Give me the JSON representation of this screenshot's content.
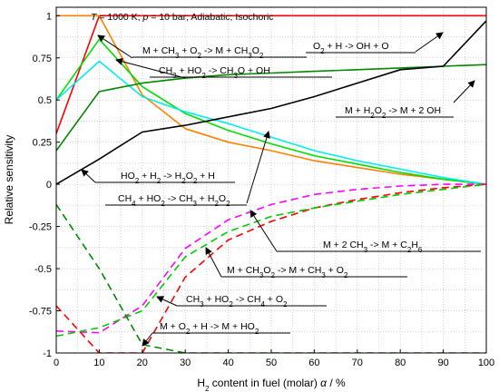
{
  "chart_data": {
    "type": "line",
    "title": "T = 1000 K; p = 10 bar; Adiabatic; Isochoric",
    "title_parts": [
      {
        "t": "T",
        "i": true
      },
      {
        "t": " = 1000 K; "
      },
      {
        "t": "p",
        "i": true
      },
      {
        "t": " = 10 bar; Adiabatic; Isochoric"
      }
    ],
    "xlabel": "H2 content in fuel (molar) α / %",
    "xlabel_parts": [
      {
        "t": "H"
      },
      {
        "t": "2",
        "sub": true
      },
      {
        "t": " content in fuel (molar) "
      },
      {
        "t": "α",
        "i": true
      },
      {
        "t": " / %"
      }
    ],
    "ylabel": "Relative sensitivity",
    "xlim": [
      0,
      100
    ],
    "ylim": [
      -1,
      1.05
    ],
    "xticks": [
      0,
      10,
      20,
      30,
      40,
      50,
      60,
      70,
      80,
      90,
      100
    ],
    "yticks": [
      -1,
      -0.75,
      -0.5,
      -0.25,
      0,
      0.25,
      0.5,
      0.75,
      1
    ],
    "ytick_labels": [
      "-1",
      "-0.75",
      "-0.5",
      "-0.25",
      "0",
      "0.25",
      "0.5",
      "0.75",
      "1"
    ],
    "grid": true,
    "x": [
      0,
      10,
      20,
      30,
      40,
      50,
      60,
      70,
      80,
      90,
      100
    ],
    "series": [
      {
        "name": "O2 + H -> OH + O",
        "color": "#ff0000",
        "dash": "solid",
        "points": [
          [
            0,
            0.3
          ],
          [
            10,
            1
          ],
          [
            20,
            1
          ],
          [
            30,
            1
          ],
          [
            40,
            1
          ],
          [
            50,
            1
          ],
          [
            60,
            1
          ],
          [
            70,
            1
          ],
          [
            80,
            1
          ],
          [
            90,
            1
          ],
          [
            100,
            1
          ]
        ]
      },
      {
        "name": "M + CH3 + O2 -> M + CH3O2",
        "color": "#ff8000",
        "dash": "solid",
        "points": [
          [
            0,
            1
          ],
          [
            10,
            1
          ],
          [
            20,
            0.53
          ],
          [
            30,
            0.33
          ],
          [
            40,
            0.25
          ],
          [
            50,
            0.2
          ],
          [
            60,
            0.14
          ],
          [
            70,
            0.1
          ],
          [
            80,
            0.06
          ],
          [
            90,
            0.03
          ],
          [
            100,
            0
          ]
        ]
      },
      {
        "name": "CH3 + HO2 -> CH3O + OH",
        "color": "#00dd00",
        "dash": "solid",
        "points": [
          [
            0,
            0.5
          ],
          [
            10,
            0.86
          ],
          [
            20,
            0.58
          ],
          [
            30,
            0.42
          ],
          [
            40,
            0.32
          ],
          [
            50,
            0.24
          ],
          [
            60,
            0.17
          ],
          [
            70,
            0.12
          ],
          [
            80,
            0.07
          ],
          [
            90,
            0.03
          ],
          [
            100,
            0
          ]
        ]
      },
      {
        "name": "CH4 + HO2 -> CH3 + H2O2",
        "color": "#00eeee",
        "dash": "solid",
        "points": [
          [
            0,
            0.5
          ],
          [
            10,
            0.73
          ],
          [
            20,
            0.52
          ],
          [
            30,
            0.43
          ],
          [
            40,
            0.36
          ],
          [
            50,
            0.28
          ],
          [
            60,
            0.2
          ],
          [
            70,
            0.14
          ],
          [
            80,
            0.09
          ],
          [
            90,
            0.04
          ],
          [
            100,
            0
          ]
        ]
      },
      {
        "name": "M + H2O2 -> M + 2 OH",
        "color": "#008800",
        "dash": "solid",
        "points": [
          [
            0,
            0.2
          ],
          [
            10,
            0.55
          ],
          [
            20,
            0.6
          ],
          [
            30,
            0.63
          ],
          [
            40,
            0.65
          ],
          [
            50,
            0.66
          ],
          [
            60,
            0.67
          ],
          [
            70,
            0.68
          ],
          [
            80,
            0.69
          ],
          [
            90,
            0.7
          ],
          [
            100,
            0.71
          ]
        ]
      },
      {
        "name": "HO2 + H2 -> H2O2 + H",
        "color": "#000000",
        "dash": "solid",
        "points": [
          [
            0,
            0
          ],
          [
            10,
            0.15
          ],
          [
            20,
            0.31
          ],
          [
            30,
            0.35
          ],
          [
            40,
            0.4
          ],
          [
            50,
            0.45
          ],
          [
            60,
            0.52
          ],
          [
            70,
            0.6
          ],
          [
            80,
            0.68
          ],
          [
            90,
            0.7
          ],
          [
            100,
            0.97
          ]
        ]
      },
      {
        "name": "M + 2 CH3 -> M + C2H6",
        "color": "#ff00ff",
        "dash": "dashed",
        "points": [
          [
            0,
            -0.87
          ],
          [
            10,
            -0.88
          ],
          [
            20,
            -0.72
          ],
          [
            30,
            -0.38
          ],
          [
            40,
            -0.21
          ],
          [
            50,
            -0.12
          ],
          [
            60,
            -0.06
          ],
          [
            70,
            -0.03
          ],
          [
            80,
            -0.01
          ],
          [
            90,
            0
          ],
          [
            100,
            0
          ]
        ]
      },
      {
        "name": "M + CH3O2 -> M + CH3 + O2",
        "color": "#ff0000",
        "dash": "dashed",
        "points": [
          [
            0,
            -0.72
          ],
          [
            10,
            -1
          ],
          [
            20,
            -1
          ],
          [
            30,
            -0.55
          ],
          [
            40,
            -0.33
          ],
          [
            50,
            -0.22
          ],
          [
            60,
            -0.14
          ],
          [
            70,
            -0.09
          ],
          [
            80,
            -0.05
          ],
          [
            90,
            -0.02
          ],
          [
            100,
            0
          ]
        ]
      },
      {
        "name": "CH3 + HO2 -> CH4 + O2",
        "color": "#00cc00",
        "dash": "dashed",
        "points": [
          [
            0,
            -0.9
          ],
          [
            10,
            -0.85
          ],
          [
            20,
            -0.75
          ],
          [
            30,
            -0.43
          ],
          [
            40,
            -0.28
          ],
          [
            50,
            -0.19
          ],
          [
            60,
            -0.14
          ],
          [
            70,
            -0.1
          ],
          [
            80,
            -0.06
          ],
          [
            90,
            -0.03
          ],
          [
            100,
            0
          ]
        ]
      },
      {
        "name": "M + O2 + H -> M + HO2",
        "color": "#008800",
        "dash": "dashed",
        "points": [
          [
            0,
            -0.12
          ],
          [
            10,
            -0.5
          ],
          [
            20,
            -0.95
          ],
          [
            30,
            -1
          ],
          [
            40,
            -1
          ],
          [
            50,
            -1
          ],
          [
            60,
            -1
          ],
          [
            70,
            -1
          ],
          [
            80,
            -1
          ],
          [
            90,
            -1
          ],
          [
            100,
            -1
          ]
        ]
      }
    ],
    "annotations": [
      {
        "parts": [
          {
            "t": "M + CH"
          },
          {
            "t": "3",
            "sub": true
          },
          {
            "t": " + O"
          },
          {
            "t": "2",
            "sub": true
          },
          {
            "t": " -> M + CH"
          },
          {
            "t": "3",
            "sub": true
          },
          {
            "t": "O"
          },
          {
            "t": "2",
            "sub": true
          }
        ]
      },
      {
        "parts": [
          {
            "t": "O"
          },
          {
            "t": "2",
            "sub": true
          },
          {
            "t": " + H -> OH + O"
          }
        ]
      },
      {
        "parts": [
          {
            "t": "CH"
          },
          {
            "t": "3",
            "sub": true
          },
          {
            "t": " + HO"
          },
          {
            "t": "2",
            "sub": true
          },
          {
            "t": " -> CH"
          },
          {
            "t": "3",
            "sub": true
          },
          {
            "t": "O + OH"
          }
        ]
      },
      {
        "parts": [
          {
            "t": "M + H"
          },
          {
            "t": "2",
            "sub": true
          },
          {
            "t": "O"
          },
          {
            "t": "2",
            "sub": true
          },
          {
            "t": " -> M + 2 OH"
          }
        ]
      },
      {
        "parts": [
          {
            "t": "HO"
          },
          {
            "t": "2",
            "sub": true
          },
          {
            "t": " + H"
          },
          {
            "t": "2",
            "sub": true
          },
          {
            "t": " -> H"
          },
          {
            "t": "2",
            "sub": true
          },
          {
            "t": "O"
          },
          {
            "t": "2",
            "sub": true
          },
          {
            "t": " + H"
          }
        ]
      },
      {
        "parts": [
          {
            "t": "CH"
          },
          {
            "t": "4",
            "sub": true
          },
          {
            "t": " + HO"
          },
          {
            "t": "2",
            "sub": true
          },
          {
            "t": " -> CH"
          },
          {
            "t": "3",
            "sub": true
          },
          {
            "t": " + H"
          },
          {
            "t": "2",
            "sub": true
          },
          {
            "t": "O"
          },
          {
            "t": "2",
            "sub": true
          }
        ]
      },
      {
        "parts": [
          {
            "t": "M + 2 CH"
          },
          {
            "t": "3",
            "sub": true
          },
          {
            "t": " -> M + C"
          },
          {
            "t": "2",
            "sub": true
          },
          {
            "t": "H"
          },
          {
            "t": "6",
            "sub": true
          }
        ]
      },
      {
        "parts": [
          {
            "t": "M + CH"
          },
          {
            "t": "3",
            "sub": true
          },
          {
            "t": "O"
          },
          {
            "t": "2",
            "sub": true
          },
          {
            "t": " -> M + CH"
          },
          {
            "t": "3",
            "sub": true
          },
          {
            "t": " + O"
          },
          {
            "t": "2",
            "sub": true
          }
        ]
      },
      {
        "parts": [
          {
            "t": "CH"
          },
          {
            "t": "3",
            "sub": true
          },
          {
            "t": " + HO"
          },
          {
            "t": "2",
            "sub": true
          },
          {
            "t": " -> CH"
          },
          {
            "t": "4",
            "sub": true
          },
          {
            "t": " + O"
          },
          {
            "t": "2",
            "sub": true
          }
        ]
      },
      {
        "parts": [
          {
            "t": "M + O"
          },
          {
            "t": "2",
            "sub": true
          },
          {
            "t": " + H -> M + HO"
          },
          {
            "t": "2",
            "sub": true
          }
        ]
      }
    ]
  }
}
